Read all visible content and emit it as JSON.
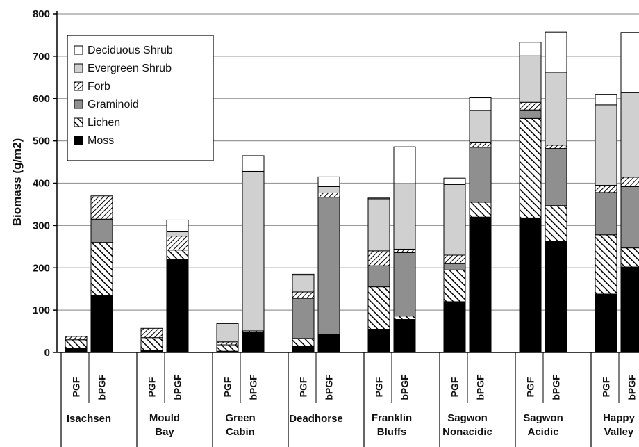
{
  "chart_data": {
    "type": "bar",
    "stacked": true,
    "ylabel": "Biomass (g/m2)",
    "ylim": [
      0,
      800
    ],
    "yticks": [
      0,
      100,
      200,
      300,
      400,
      500,
      600,
      700,
      800
    ],
    "grid": true,
    "legend_position": "top-left",
    "groups": [
      "Isachsen",
      "Mould\nBay",
      "Green\nCabin",
      "Deadhorse",
      "Franklin\nBluffs",
      "Sagwon\nNonacidic",
      "Sagwon\nAcidic",
      "Happy\nValley"
    ],
    "bar_labels": [
      "PGF",
      "bPGF"
    ],
    "categories": [
      "Isachsen PGF",
      "Isachsen bPGF",
      "Mould Bay PGF",
      "Mould Bay bPGF",
      "Green Cabin PGF",
      "Green Cabin bPGF",
      "Deadhorse PGF",
      "Deadhorse bPGF",
      "Franklin Bluffs PGF",
      "Franklin Bluffs bPGF",
      "Sagwon Nonacidic PGF",
      "Sagwon Nonacidic bPGF",
      "Sagwon Acidic PGF",
      "Sagwon Acidic bPGF",
      "Happy Valley PGF",
      "Happy Valley bPGF"
    ],
    "series": [
      {
        "name": "Moss",
        "fill": "#000000",
        "values": [
          10,
          135,
          5,
          220,
          3,
          48,
          15,
          42,
          55,
          78,
          120,
          320,
          318,
          262,
          138,
          202
        ]
      },
      {
        "name": "Lichen",
        "fill": "hatch-diag",
        "values": [
          20,
          125,
          30,
          22,
          15,
          3,
          18,
          0,
          100,
          8,
          75,
          35,
          235,
          85,
          140,
          45
        ]
      },
      {
        "name": "Graminoid",
        "fill": "#8f8f8f",
        "values": [
          0,
          55,
          0,
          0,
          0,
          0,
          95,
          325,
          50,
          150,
          15,
          130,
          20,
          135,
          100,
          145
        ]
      },
      {
        "name": "Forb",
        "fill": "hatch-cross",
        "values": [
          8,
          55,
          22,
          33,
          7,
          0,
          15,
          10,
          35,
          8,
          20,
          12,
          18,
          8,
          17,
          22
        ]
      },
      {
        "name": "Evergreen Shrub",
        "fill": "#d0d0d0",
        "values": [
          0,
          0,
          0,
          10,
          40,
          377,
          40,
          15,
          123,
          155,
          167,
          75,
          110,
          172,
          190,
          200
        ]
      },
      {
        "name": "Deciduous Shrub",
        "fill": "#ffffff",
        "values": [
          0,
          0,
          0,
          28,
          3,
          37,
          2,
          23,
          2,
          87,
          15,
          30,
          32,
          95,
          25,
          142
        ]
      }
    ]
  }
}
